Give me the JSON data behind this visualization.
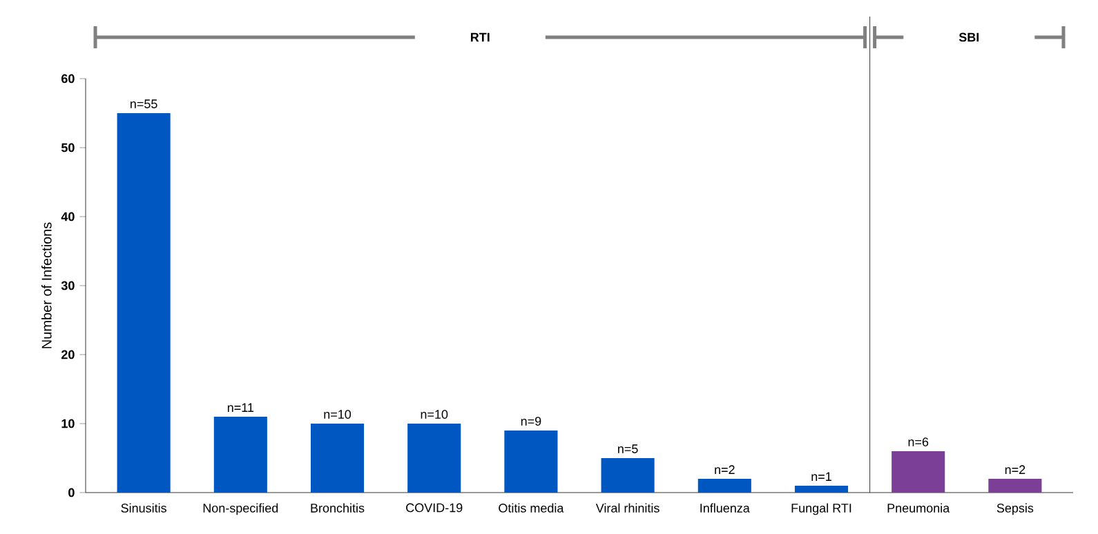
{
  "chart_data": {
    "type": "bar",
    "ylabel": "Number of Infections",
    "categories": [
      "Sinusitis",
      "Non-specified",
      "Bronchitis",
      "COVID-19",
      "Otitis media",
      "Viral rhinitis",
      "Influenza",
      "Fungal RTI",
      "Pneumonia",
      "Sepsis"
    ],
    "values": [
      55,
      11,
      10,
      10,
      9,
      5,
      2,
      1,
      6,
      2
    ],
    "colors": [
      "#0057c2",
      "#0057c2",
      "#0057c2",
      "#0057c2",
      "#0057c2",
      "#0057c2",
      "#0057c2",
      "#0057c2",
      "#7b3f98",
      "#7b3f98"
    ],
    "value_labels": [
      "n=55",
      "n=11",
      "n=10",
      "n=10",
      "n=9",
      "n=5",
      "n=2",
      "n=1",
      "n=6",
      "n=2"
    ],
    "annotations": [
      "RTI",
      "SBI"
    ],
    "ylim": [
      0,
      60
    ],
    "yticks": [
      0,
      10,
      20,
      30,
      40,
      50,
      60
    ],
    "grid": false
  }
}
